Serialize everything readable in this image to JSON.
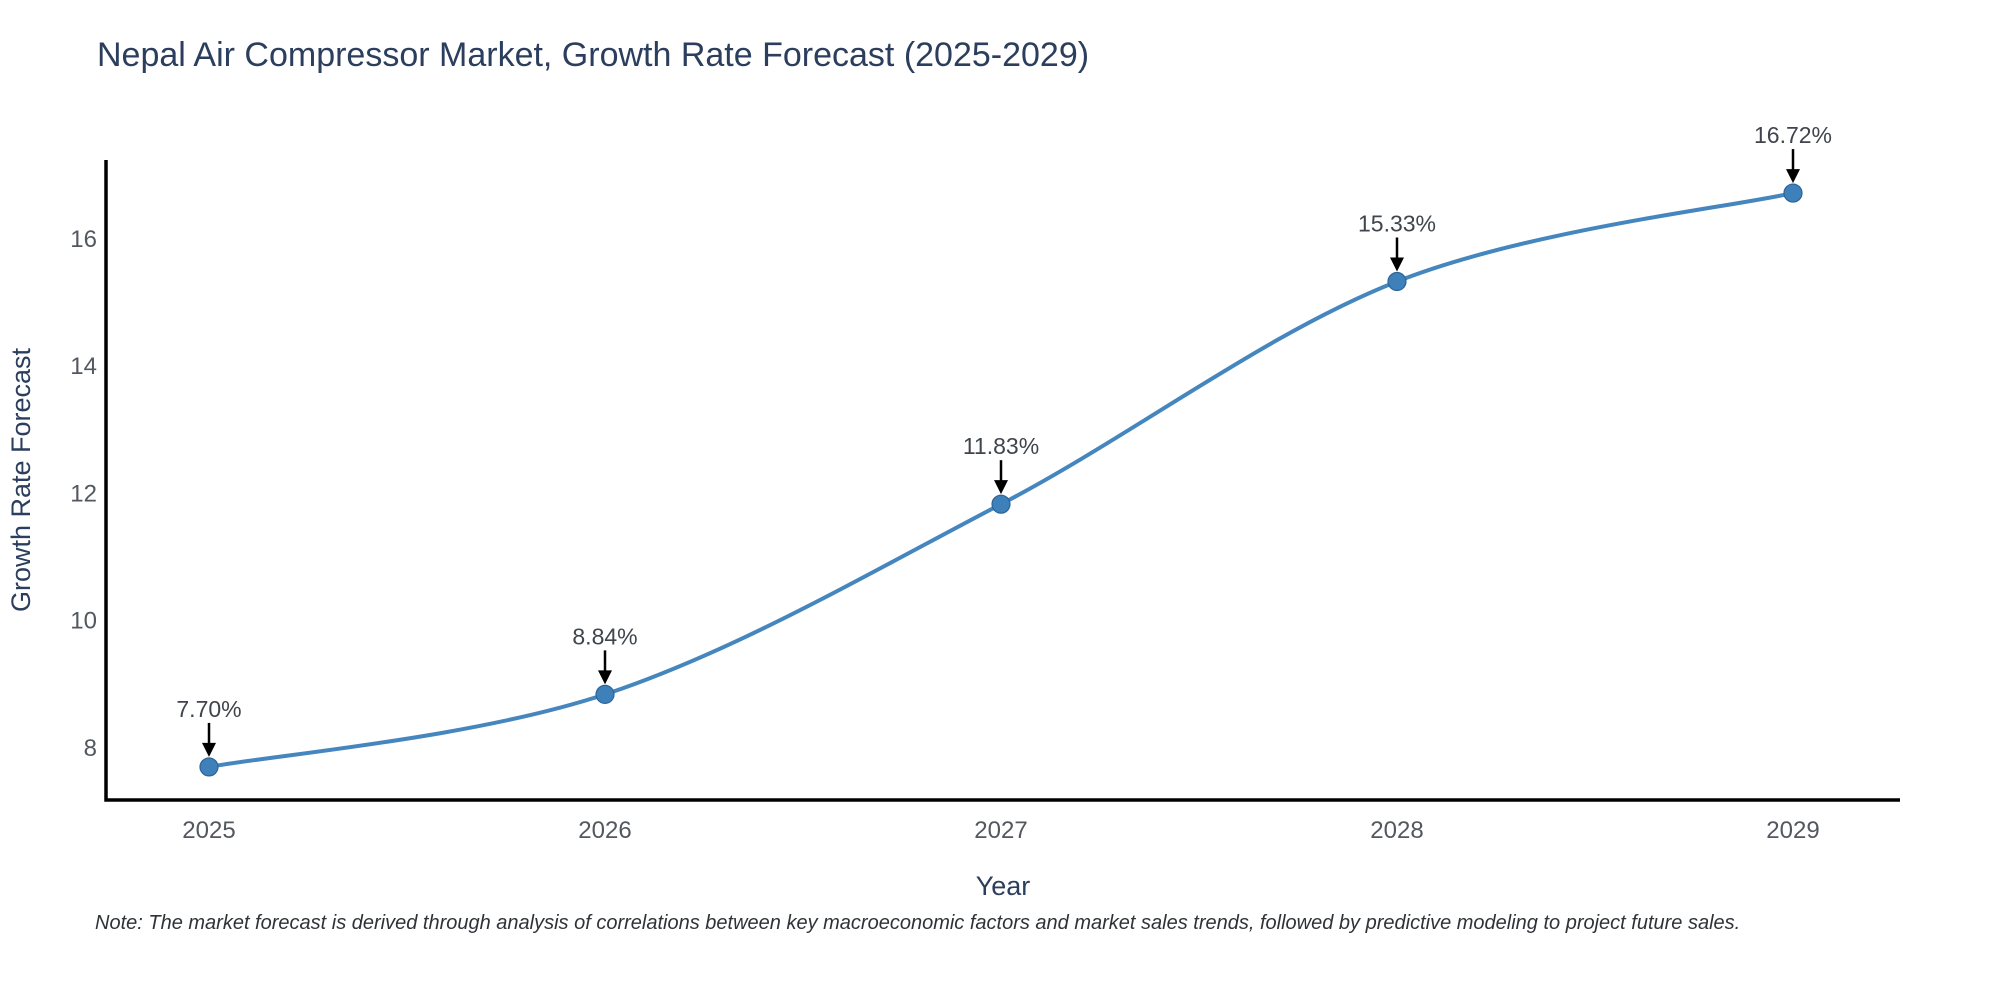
{
  "title": "Nepal Air Compressor Market, Growth Rate Forecast (2025-2029)",
  "note": "Note: The market forecast is derived through analysis of correlations between key macroeconomic factors and market sales trends, followed by predictive modeling to project future sales.",
  "chart_data": {
    "type": "line",
    "title": "Nepal Air Compressor Market, Growth Rate Forecast (2025-2029)",
    "xlabel": "Year",
    "ylabel": "Growth Rate Forecast",
    "x": [
      2025,
      2026,
      2027,
      2028,
      2029
    ],
    "values": [
      7.7,
      8.84,
      11.83,
      15.33,
      16.72
    ],
    "labels": [
      "7.70%",
      "8.84%",
      "11.83%",
      "15.33%",
      "16.72%"
    ],
    "yticks": [
      8,
      10,
      12,
      14,
      16
    ],
    "ylim": [
      7.18,
      17.24
    ],
    "line_shape": "spline",
    "grid": false,
    "legend_position": "none",
    "colors": {
      "line": "#4486bd",
      "marker_fill": "#3d80ba",
      "marker_edge": "#2d6396",
      "axis_line": "#000000",
      "tick_text": "#53585f",
      "axis_title_text": "#2c3e5d",
      "annotation_text": "#3f454c",
      "annotation_arrow": "#000000",
      "background": "#ffffff"
    }
  }
}
